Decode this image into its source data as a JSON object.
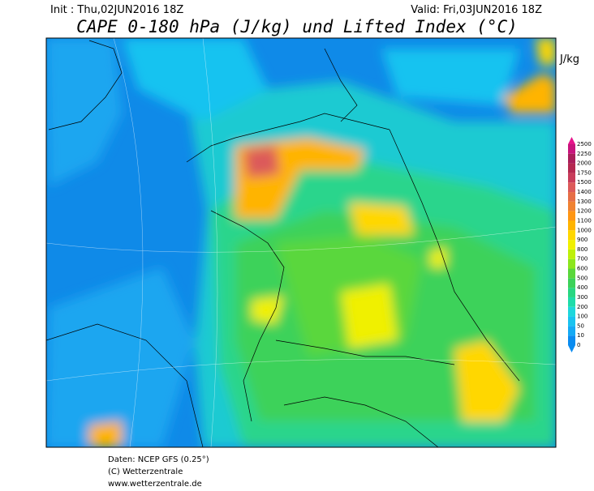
{
  "header": {
    "init": "Init : Thu,02JUN2016 18Z",
    "valid": "Valid: Fri,03JUN2016 18Z",
    "title": "CAPE 0-180 hPa (J/kg) und Lifted Index (°C)"
  },
  "colorbar": {
    "unit": "J/kg",
    "levels": [
      0,
      10,
      50,
      100,
      200,
      300,
      400,
      500,
      600,
      700,
      800,
      900,
      1000,
      1100,
      1200,
      1300,
      1400,
      1500,
      1750,
      2000,
      2250,
      2500
    ],
    "colors": [
      "#0a8cf0",
      "#14aaf5",
      "#19c3f0",
      "#1ed7dc",
      "#1edcaa",
      "#28d782",
      "#3cd25a",
      "#5ad73c",
      "#8ce61e",
      "#bef00a",
      "#f0f000",
      "#ffd700",
      "#ffb400",
      "#ff9614",
      "#f08232",
      "#e66e46",
      "#dc5a5a",
      "#c83c5a",
      "#b42850",
      "#aa1e5a",
      "#c8147d",
      "#e6148c"
    ]
  },
  "footer": {
    "lines": [
      "Daten: NCEP GFS (0.25°)",
      "(C) Wetterzentrale",
      "www.wetterzentrale.de"
    ]
  }
}
